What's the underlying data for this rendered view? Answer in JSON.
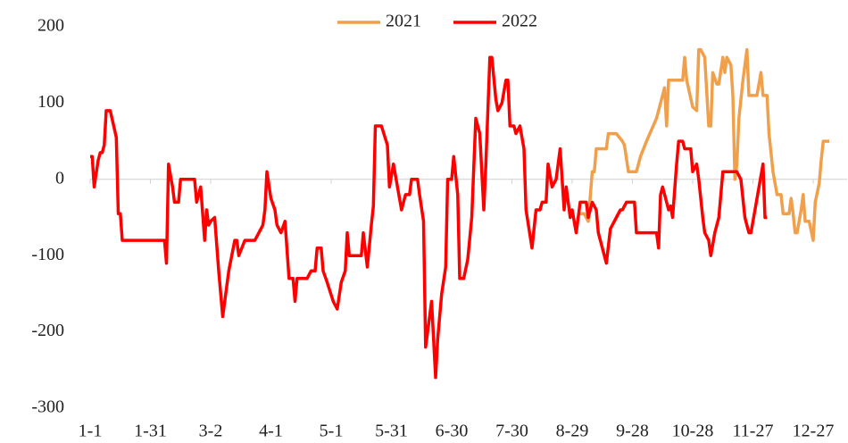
{
  "chart_data": {
    "type": "line",
    "xlim": [
      0,
      368
    ],
    "xticks": [
      {
        "value": 0,
        "label": "1-1"
      },
      {
        "value": 30,
        "label": "1-31"
      },
      {
        "value": 60,
        "label": "3-2"
      },
      {
        "value": 90,
        "label": "4-1"
      },
      {
        "value": 120,
        "label": "5-1"
      },
      {
        "value": 150,
        "label": "5-31"
      },
      {
        "value": 180,
        "label": "6-30"
      },
      {
        "value": 210,
        "label": "7-30"
      },
      {
        "value": 240,
        "label": "8-29"
      },
      {
        "value": 270,
        "label": "9-28"
      },
      {
        "value": 300,
        "label": "10-28"
      },
      {
        "value": 330,
        "label": "11-27"
      },
      {
        "value": 360,
        "label": "12-27"
      }
    ],
    "ylim": [
      -300,
      200
    ],
    "yticks": [
      -300,
      -200,
      -100,
      0,
      100,
      200
    ],
    "grid": false,
    "legend": "top",
    "series": [
      {
        "name": "2021",
        "color": "#f0a04b",
        "x": [
          243,
          246,
          248,
          250,
          251,
          252,
          257,
          258,
          262,
          265,
          266,
          268,
          272,
          274,
          277,
          282,
          284,
          286,
          287,
          288,
          295,
          296,
          297,
          300,
          302,
          303,
          304,
          306,
          308,
          309,
          310,
          312,
          313,
          315,
          316,
          317,
          319,
          320,
          321,
          322,
          323,
          325,
          327,
          328,
          332,
          334,
          335,
          337,
          338,
          340,
          342,
          344,
          345,
          348,
          349,
          350,
          351,
          352,
          354,
          355,
          356,
          358,
          360,
          361,
          363,
          364,
          365,
          368
        ],
        "values": [
          -45,
          -45,
          -55,
          10,
          10,
          40,
          40,
          60,
          60,
          50,
          45,
          10,
          10,
          30,
          50,
          80,
          100,
          120,
          70,
          130,
          130,
          160,
          130,
          95,
          90,
          170,
          170,
          160,
          70,
          70,
          140,
          125,
          125,
          160,
          140,
          160,
          150,
          110,
          0,
          20,
          80,
          130,
          170,
          110,
          110,
          140,
          110,
          110,
          60,
          10,
          -20,
          -20,
          -45,
          -45,
          -25,
          -45,
          -70,
          -70,
          -40,
          -20,
          -55,
          -55,
          -80,
          -30,
          -5,
          25,
          50,
          50
        ]
      },
      {
        "name": "2022",
        "color": "#ff0000",
        "x": [
          0,
          1,
          2,
          4,
          5,
          6,
          7,
          8,
          10,
          13,
          14,
          15,
          16,
          37,
          38,
          39,
          41,
          42,
          44,
          45,
          52,
          53,
          55,
          57,
          58,
          59,
          60,
          62,
          64,
          66,
          69,
          72,
          73,
          74,
          77,
          82,
          85,
          86,
          87,
          88,
          90,
          92,
          93,
          95,
          97,
          99,
          101,
          102,
          103,
          108,
          110,
          112,
          113,
          115,
          116,
          118,
          121,
          123,
          125,
          127,
          128,
          129,
          135,
          136,
          138,
          140,
          141,
          142,
          144,
          145,
          148,
          149,
          151,
          153,
          155,
          157,
          159,
          160,
          163,
          164,
          166,
          167,
          170,
          172,
          173,
          175,
          177,
          178,
          180,
          181,
          183,
          184,
          186,
          188,
          190,
          192,
          194,
          196,
          197,
          199,
          200,
          202,
          203,
          205,
          207,
          208,
          209,
          211,
          212,
          214,
          216,
          217,
          220,
          222,
          224,
          225,
          227,
          228,
          230,
          232,
          234,
          236,
          237,
          239,
          240,
          242,
          244,
          245,
          247,
          248,
          250,
          252,
          253,
          255,
          257,
          259,
          260,
          262,
          264,
          265,
          267,
          271,
          272,
          282,
          283,
          284,
          285,
          287,
          288,
          289,
          290,
          292,
          293,
          295,
          296,
          299,
          300,
          302,
          303,
          305,
          306,
          308,
          309,
          311,
          313,
          315,
          322,
          324,
          326,
          328,
          329,
          331,
          333,
          335,
          336,
          337
        ],
        "values": [
          30,
          30,
          -10,
          25,
          35,
          35,
          45,
          90,
          90,
          55,
          -45,
          -45,
          -80,
          -80,
          -110,
          20,
          -10,
          -30,
          -30,
          0,
          0,
          -30,
          -10,
          -80,
          -40,
          -60,
          -55,
          -50,
          -120,
          -180,
          -120,
          -80,
          -80,
          -100,
          -80,
          -80,
          -65,
          -60,
          -40,
          10,
          -25,
          -40,
          -60,
          -70,
          -55,
          -130,
          -130,
          -160,
          -130,
          -130,
          -120,
          -120,
          -90,
          -90,
          -120,
          -135,
          -160,
          -170,
          -135,
          -120,
          -70,
          -100,
          -100,
          -70,
          -115,
          -60,
          -35,
          70,
          70,
          70,
          45,
          -10,
          20,
          -10,
          -40,
          -20,
          -20,
          0,
          0,
          -20,
          -55,
          -220,
          -160,
          -260,
          -210,
          -150,
          -115,
          0,
          0,
          30,
          -20,
          -130,
          -130,
          -105,
          -50,
          80,
          60,
          -40,
          20,
          160,
          160,
          105,
          90,
          100,
          130,
          130,
          70,
          70,
          60,
          70,
          40,
          -40,
          -90,
          -40,
          -40,
          -30,
          -30,
          20,
          -10,
          0,
          40,
          -40,
          -10,
          -50,
          -40,
          -70,
          -30,
          -30,
          -30,
          -50,
          -30,
          -40,
          -70,
          -90,
          -110,
          -65,
          -60,
          -50,
          -40,
          -40,
          -30,
          -30,
          -70,
          -70,
          -90,
          -20,
          -10,
          -30,
          -40,
          -35,
          -50,
          20,
          50,
          50,
          40,
          40,
          10,
          20,
          0,
          -50,
          -70,
          -80,
          -100,
          -70,
          -50,
          10,
          10,
          0,
          -50,
          -70,
          -70,
          -40,
          -10,
          20,
          -50,
          -50
        ]
      }
    ]
  }
}
